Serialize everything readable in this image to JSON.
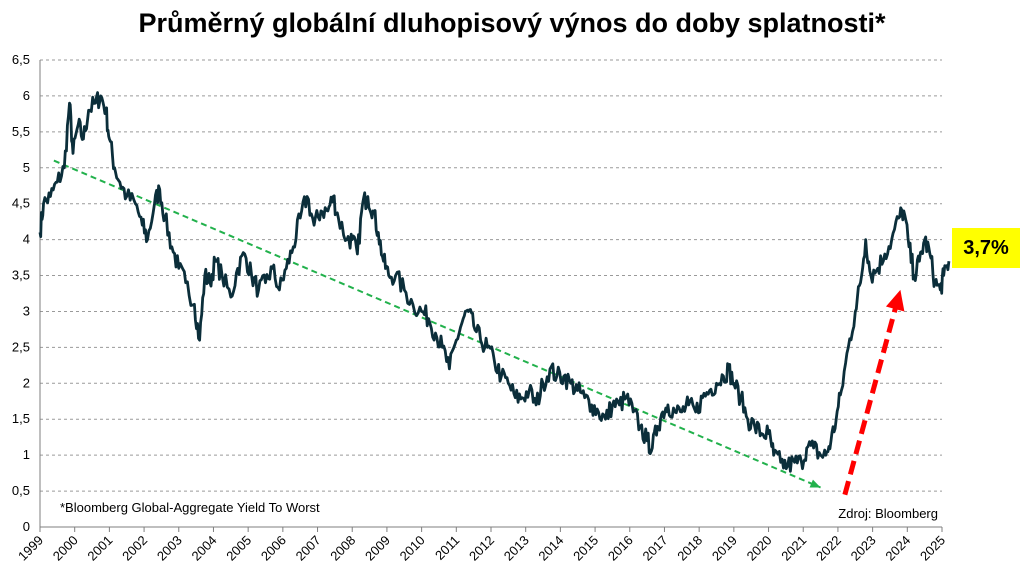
{
  "chart_data": {
    "type": "line",
    "title": "Průměrný globální dluhopisový výnos do doby splatnosti*",
    "xlabel": "",
    "ylabel": "",
    "ylim": [
      0,
      6.5
    ],
    "xlim": [
      1999,
      2025
    ],
    "y_ticks": [
      "0",
      "0,5",
      "1",
      "1,5",
      "2",
      "2,5",
      "3",
      "3,5",
      "4",
      "4,5",
      "5",
      "5,5",
      "6",
      "6,5"
    ],
    "x_ticks": [
      "1999",
      "2000",
      "2001",
      "2002",
      "2003",
      "2004",
      "2005",
      "2006",
      "2007",
      "2008",
      "2009",
      "2010",
      "2011",
      "2012",
      "2013",
      "2014",
      "2015",
      "2016",
      "2017",
      "2018",
      "2019",
      "2020",
      "2021",
      "2022",
      "2023",
      "2024",
      "2025"
    ],
    "grid": "horizontal dashed",
    "series": [
      {
        "color": "#0b2e3a",
        "points": [
          [
            1999.0,
            4.1
          ],
          [
            1999.1,
            4.5
          ],
          [
            1999.3,
            4.6
          ],
          [
            1999.5,
            4.8
          ],
          [
            1999.7,
            5.0
          ],
          [
            1999.85,
            5.9
          ],
          [
            1999.95,
            5.2
          ],
          [
            2000.1,
            5.6
          ],
          [
            2000.25,
            5.4
          ],
          [
            2000.4,
            5.8
          ],
          [
            2000.6,
            5.9
          ],
          [
            2000.75,
            6.0
          ],
          [
            2000.9,
            5.8
          ],
          [
            2001.0,
            5.4
          ],
          [
            2001.15,
            5.0
          ],
          [
            2001.3,
            4.8
          ],
          [
            2001.5,
            4.6
          ],
          [
            2001.75,
            4.5
          ],
          [
            2001.95,
            4.2
          ],
          [
            2002.1,
            4.0
          ],
          [
            2002.3,
            4.5
          ],
          [
            2002.45,
            4.7
          ],
          [
            2002.6,
            4.3
          ],
          [
            2002.8,
            3.9
          ],
          [
            2003.0,
            3.6
          ],
          [
            2003.2,
            3.4
          ],
          [
            2003.45,
            3.1
          ],
          [
            2003.6,
            2.6
          ],
          [
            2003.75,
            3.5
          ],
          [
            2003.9,
            3.4
          ],
          [
            2004.05,
            3.7
          ],
          [
            2004.25,
            3.5
          ],
          [
            2004.5,
            3.2
          ],
          [
            2004.7,
            3.6
          ],
          [
            2004.9,
            3.8
          ],
          [
            2005.1,
            3.5
          ],
          [
            2005.3,
            3.3
          ],
          [
            2005.5,
            3.4
          ],
          [
            2005.7,
            3.6
          ],
          [
            2005.9,
            3.3
          ],
          [
            2006.1,
            3.6
          ],
          [
            2006.3,
            3.9
          ],
          [
            2006.5,
            4.3
          ],
          [
            2006.7,
            4.6
          ],
          [
            2006.9,
            4.2
          ],
          [
            2007.1,
            4.4
          ],
          [
            2007.3,
            4.4
          ],
          [
            2007.45,
            4.6
          ],
          [
            2007.6,
            4.3
          ],
          [
            2007.85,
            4.0
          ],
          [
            2008.0,
            4.0
          ],
          [
            2008.15,
            3.8
          ],
          [
            2008.3,
            4.5
          ],
          [
            2008.45,
            4.6
          ],
          [
            2008.6,
            4.4
          ],
          [
            2008.75,
            4.1
          ],
          [
            2008.9,
            3.7
          ],
          [
            2009.05,
            3.5
          ],
          [
            2009.25,
            3.5
          ],
          [
            2009.5,
            3.3
          ],
          [
            2009.75,
            3.1
          ],
          [
            2010.0,
            3.0
          ],
          [
            2010.2,
            2.9
          ],
          [
            2010.4,
            2.7
          ],
          [
            2010.6,
            2.5
          ],
          [
            2010.8,
            2.2
          ],
          [
            2011.0,
            2.6
          ],
          [
            2011.2,
            2.9
          ],
          [
            2011.35,
            3.0
          ],
          [
            2011.5,
            2.8
          ],
          [
            2011.7,
            2.6
          ],
          [
            2011.9,
            2.5
          ],
          [
            2012.1,
            2.3
          ],
          [
            2012.3,
            2.1
          ],
          [
            2012.5,
            2.0
          ],
          [
            2012.7,
            1.8
          ],
          [
            2012.9,
            1.8
          ],
          [
            2013.1,
            1.9
          ],
          [
            2013.3,
            1.7
          ],
          [
            2013.5,
            2.0
          ],
          [
            2013.7,
            2.2
          ],
          [
            2013.9,
            2.1
          ],
          [
            2014.1,
            2.1
          ],
          [
            2014.3,
            2.0
          ],
          [
            2014.5,
            1.9
          ],
          [
            2014.7,
            1.8
          ],
          [
            2014.9,
            1.7
          ],
          [
            2015.1,
            1.6
          ],
          [
            2015.3,
            1.5
          ],
          [
            2015.5,
            1.7
          ],
          [
            2015.7,
            1.7
          ],
          [
            2015.9,
            1.8
          ],
          [
            2016.1,
            1.6
          ],
          [
            2016.3,
            1.4
          ],
          [
            2016.5,
            1.2
          ],
          [
            2016.65,
            1.1
          ],
          [
            2016.8,
            1.4
          ],
          [
            2016.95,
            1.6
          ],
          [
            2017.1,
            1.7
          ],
          [
            2017.3,
            1.6
          ],
          [
            2017.5,
            1.6
          ],
          [
            2017.7,
            1.7
          ],
          [
            2017.9,
            1.6
          ],
          [
            2018.1,
            1.8
          ],
          [
            2018.3,
            1.9
          ],
          [
            2018.5,
            2.0
          ],
          [
            2018.7,
            2.1
          ],
          [
            2018.85,
            2.2
          ],
          [
            2019.0,
            2.0
          ],
          [
            2019.2,
            1.8
          ],
          [
            2019.4,
            1.5
          ],
          [
            2019.6,
            1.4
          ],
          [
            2019.8,
            1.3
          ],
          [
            2020.0,
            1.3
          ],
          [
            2020.15,
            1.0
          ],
          [
            2020.35,
            0.9
          ],
          [
            2020.55,
            0.85
          ],
          [
            2020.75,
            0.9
          ],
          [
            2020.95,
            0.9
          ],
          [
            2021.1,
            1.1
          ],
          [
            2021.3,
            1.1
          ],
          [
            2021.5,
            1.0
          ],
          [
            2021.65,
            1.0
          ],
          [
            2021.8,
            1.2
          ],
          [
            2021.95,
            1.5
          ],
          [
            2022.1,
            1.9
          ],
          [
            2022.3,
            2.5
          ],
          [
            2022.5,
            3.0
          ],
          [
            2022.65,
            3.4
          ],
          [
            2022.8,
            4.0
          ],
          [
            2022.95,
            3.5
          ],
          [
            2023.15,
            3.6
          ],
          [
            2023.35,
            3.8
          ],
          [
            2023.55,
            4.0
          ],
          [
            2023.75,
            4.3
          ],
          [
            2023.9,
            4.4
          ],
          [
            2024.05,
            3.9
          ],
          [
            2024.2,
            3.5
          ],
          [
            2024.35,
            3.7
          ],
          [
            2024.5,
            4.0
          ],
          [
            2024.65,
            3.8
          ],
          [
            2024.8,
            3.4
          ],
          [
            2024.95,
            3.3
          ],
          [
            2025.05,
            3.5
          ],
          [
            2025.2,
            3.7
          ]
        ]
      }
    ],
    "trend_line": {
      "color": "#22b14c",
      "from": [
        1999.4,
        5.1
      ],
      "to": [
        2021.5,
        0.55
      ]
    },
    "arrow": {
      "color": "#ff0000",
      "from": [
        2022.2,
        0.45
      ],
      "to": [
        2023.8,
        3.3
      ]
    },
    "annotations": {
      "footnote": "*Bloomberg Global-Aggregate Yield To Worst",
      "source": "Zdroj: Bloomberg",
      "callout": "3,7%",
      "callout_color": "#ffff00"
    }
  }
}
